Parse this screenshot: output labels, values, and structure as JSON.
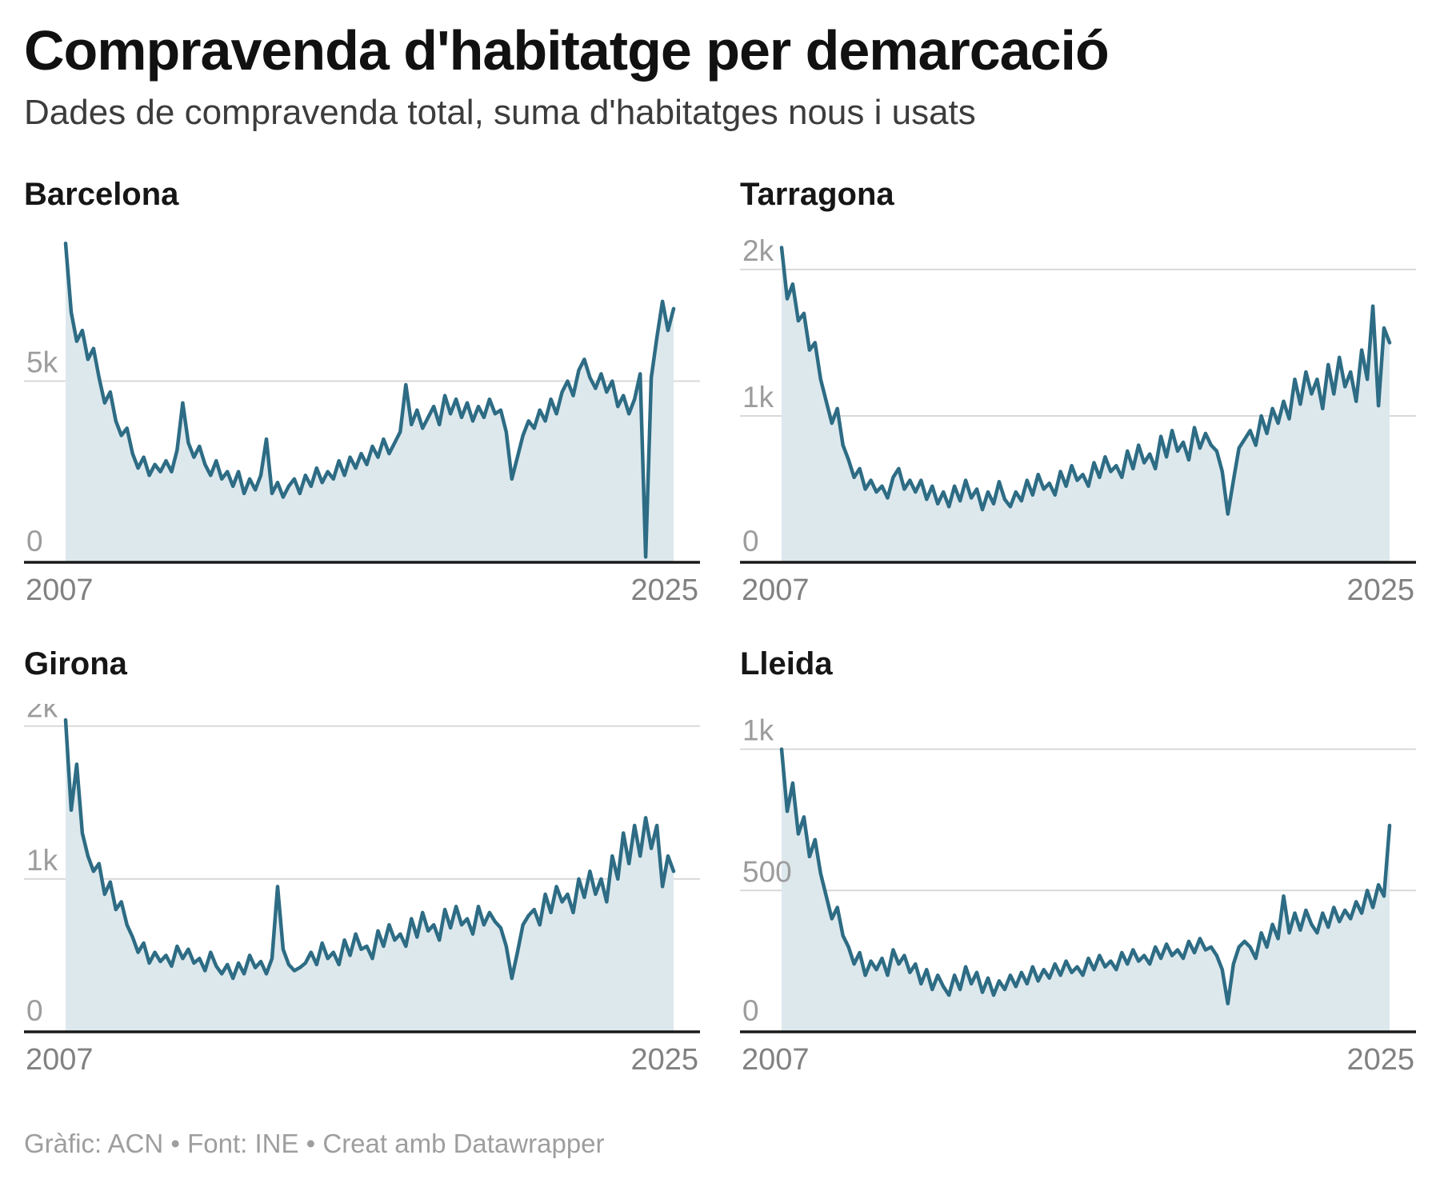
{
  "header": {
    "title": "Compravenda d'habitatge per demarcació",
    "subtitle": "Dades de compravenda total, suma d'habitatges nous i usats"
  },
  "footer": {
    "credit": "Gràfic: ACN • Font: INE • Creat amb Datawrapper"
  },
  "colors": {
    "line": "#2d6c84",
    "fill": "#dde8ed",
    "grid": "#d9d9d9",
    "axis": "#1a1a1a",
    "ytick_label": "#9c9c9c",
    "xtick_label": "#818181"
  },
  "chart_data": [
    {
      "type": "area",
      "title": "Barcelona",
      "x_start": 2007.0,
      "x_step_years": 0.1667,
      "x_labels": [
        "2007",
        "2025"
      ],
      "ylim": [
        0,
        9050
      ],
      "yticks": [
        {
          "label": "5k",
          "value": 5000,
          "gridline": true
        },
        {
          "label": "0",
          "value": 0,
          "gridline": false
        }
      ],
      "values": [
        8800,
        6900,
        6100,
        6400,
        5600,
        5900,
        5100,
        4400,
        4700,
        3900,
        3500,
        3700,
        3000,
        2600,
        2900,
        2400,
        2700,
        2500,
        2800,
        2500,
        3100,
        4400,
        3300,
        2900,
        3200,
        2700,
        2400,
        2800,
        2300,
        2500,
        2100,
        2500,
        1900,
        2300,
        2000,
        2400,
        3400,
        1900,
        2200,
        1800,
        2100,
        2300,
        1900,
        2400,
        2100,
        2600,
        2200,
        2500,
        2300,
        2800,
        2400,
        2900,
        2600,
        3000,
        2700,
        3200,
        2900,
        3400,
        3000,
        3300,
        3600,
        4900,
        3800,
        4200,
        3700,
        4000,
        4300,
        3800,
        4600,
        4100,
        4500,
        4000,
        4400,
        3900,
        4300,
        4000,
        4500,
        4100,
        4200,
        3600,
        2300,
        2900,
        3500,
        3900,
        3700,
        4200,
        3900,
        4500,
        4100,
        4700,
        5000,
        4600,
        5300,
        5600,
        5100,
        4800,
        5200,
        4700,
        5000,
        4300,
        4600,
        4100,
        4500,
        5200,
        150,
        5100,
        6200,
        7200,
        6400,
        7000
      ]
    },
    {
      "type": "area",
      "title": "Tarragona",
      "x_start": 2007.0,
      "x_step_years": 0.1667,
      "x_labels": [
        "2007",
        "2025"
      ],
      "ylim": [
        0,
        2240
      ],
      "yticks": [
        {
          "label": "2k",
          "value": 2000,
          "gridline": true
        },
        {
          "label": "1k",
          "value": 1000,
          "gridline": true
        },
        {
          "label": "0",
          "value": 0,
          "gridline": false
        }
      ],
      "values": [
        2150,
        1800,
        1900,
        1650,
        1700,
        1450,
        1500,
        1250,
        1100,
        950,
        1050,
        800,
        700,
        580,
        640,
        500,
        560,
        480,
        520,
        440,
        580,
        640,
        500,
        560,
        480,
        560,
        430,
        520,
        400,
        480,
        380,
        520,
        420,
        560,
        440,
        500,
        360,
        480,
        400,
        550,
        430,
        380,
        480,
        420,
        560,
        460,
        600,
        500,
        540,
        460,
        620,
        520,
        660,
        560,
        600,
        520,
        680,
        580,
        720,
        620,
        660,
        580,
        760,
        640,
        800,
        680,
        740,
        640,
        860,
        720,
        900,
        760,
        820,
        700,
        920,
        780,
        880,
        800,
        760,
        620,
        330,
        560,
        780,
        840,
        900,
        800,
        1000,
        880,
        1050,
        950,
        1100,
        980,
        1250,
        1080,
        1300,
        1150,
        1250,
        1050,
        1350,
        1150,
        1400,
        1200,
        1300,
        1100,
        1450,
        1250,
        1750,
        1070,
        1600,
        1500
      ]
    },
    {
      "type": "area",
      "title": "Girona",
      "x_start": 2007.0,
      "x_step_years": 0.1667,
      "x_labels": [
        "2007",
        "2025"
      ],
      "ylim": [
        0,
        2145
      ],
      "yticks": [
        {
          "label": "2k",
          "value": 2000,
          "gridline": true
        },
        {
          "label": "1k",
          "value": 1000,
          "gridline": true
        },
        {
          "label": "0",
          "value": 0,
          "gridline": false
        }
      ],
      "values": [
        2040,
        1450,
        1750,
        1300,
        1150,
        1050,
        1100,
        900,
        980,
        800,
        850,
        700,
        620,
        520,
        580,
        450,
        520,
        460,
        500,
        430,
        560,
        480,
        540,
        450,
        480,
        400,
        520,
        430,
        380,
        440,
        350,
        450,
        380,
        500,
        420,
        460,
        380,
        480,
        950,
        540,
        440,
        400,
        420,
        450,
        520,
        440,
        580,
        480,
        520,
        440,
        600,
        500,
        640,
        540,
        560,
        480,
        660,
        560,
        700,
        600,
        640,
        560,
        740,
        620,
        780,
        660,
        700,
        600,
        800,
        680,
        820,
        700,
        740,
        640,
        820,
        700,
        780,
        720,
        680,
        560,
        350,
        520,
        700,
        760,
        800,
        700,
        900,
        780,
        950,
        850,
        900,
        780,
        1000,
        880,
        1050,
        900,
        1000,
        850,
        1150,
        1000,
        1300,
        1100,
        1350,
        1150,
        1400,
        1200,
        1350,
        950,
        1150,
        1050
      ]
    },
    {
      "type": "area",
      "title": "Lleida",
      "x_start": 2007.0,
      "x_step_years": 0.1667,
      "x_labels": [
        "2007",
        "2025"
      ],
      "ylim": [
        0,
        1160
      ],
      "yticks": [
        {
          "label": "1k",
          "value": 1000,
          "gridline": true
        },
        {
          "label": "500",
          "value": 500,
          "gridline": true
        },
        {
          "label": "0",
          "value": 0,
          "gridline": false
        }
      ],
      "values": [
        1000,
        780,
        880,
        700,
        760,
        620,
        680,
        560,
        480,
        400,
        440,
        340,
        300,
        240,
        280,
        200,
        250,
        220,
        260,
        200,
        290,
        240,
        270,
        210,
        240,
        170,
        220,
        150,
        200,
        160,
        130,
        200,
        150,
        230,
        170,
        210,
        140,
        190,
        130,
        180,
        150,
        200,
        160,
        210,
        170,
        230,
        180,
        220,
        190,
        240,
        200,
        250,
        210,
        230,
        200,
        260,
        220,
        270,
        230,
        250,
        220,
        280,
        240,
        290,
        250,
        270,
        240,
        300,
        260,
        310,
        270,
        290,
        260,
        320,
        280,
        330,
        290,
        300,
        270,
        220,
        100,
        240,
        300,
        320,
        300,
        260,
        350,
        300,
        380,
        330,
        480,
        350,
        420,
        360,
        430,
        380,
        350,
        420,
        370,
        440,
        390,
        430,
        400,
        460,
        420,
        500,
        440,
        520,
        480,
        730
      ]
    }
  ]
}
